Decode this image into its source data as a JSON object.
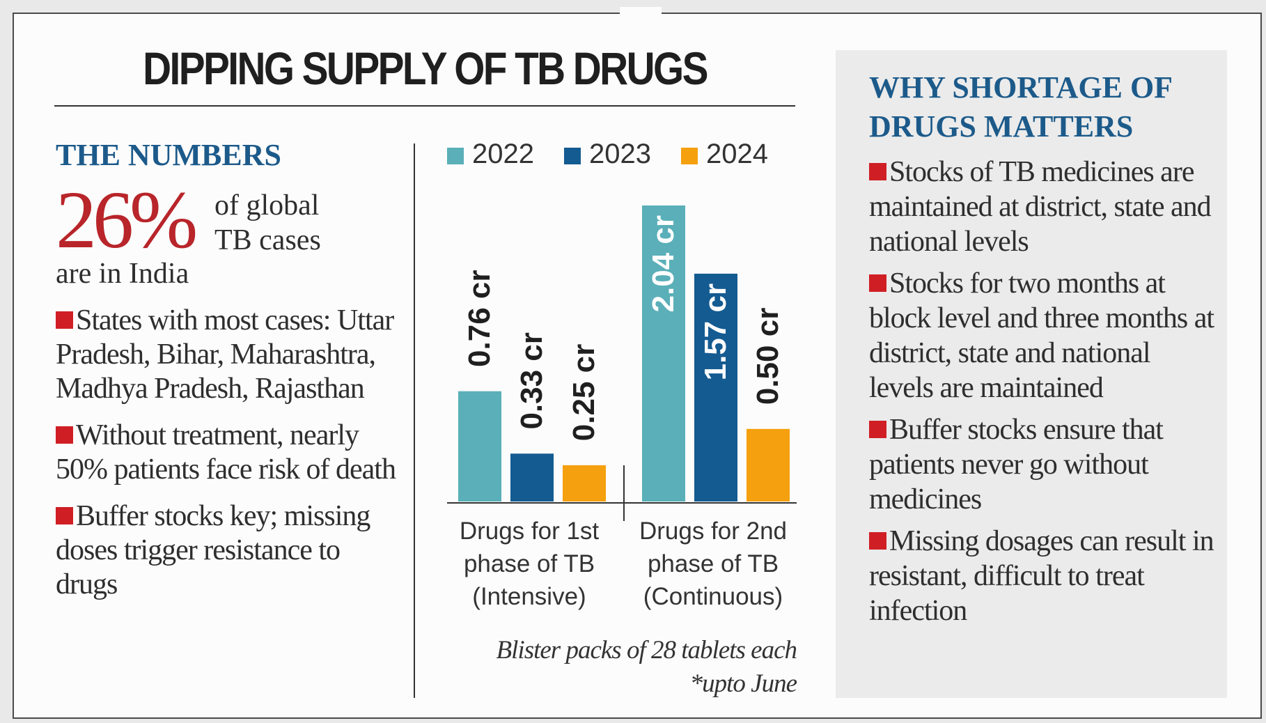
{
  "title": "DIPPING SUPPLY OF TB DRUGS",
  "numbers": {
    "heading": "THE NUMBERS",
    "big_stat": "26%",
    "big_stat_text_line1": "of global",
    "big_stat_text_line2": "TB cases",
    "big_stat_tail": "are in India",
    "bullets": [
      "States with most cases: Uttar Pradesh, Bihar, Maharashtra, Madhya Pradesh, Rajasthan",
      "Without treatment, nearly 50% patients face risk of death",
      "Buffer stocks key; missing doses trigger resistance to drugs"
    ]
  },
  "why": {
    "heading": "WHY SHORTAGE OF DRUGS MATTERS",
    "bullets": [
      "Stocks of TB medicines are maintained at district, state and national levels",
      "Stocks for two months at block level and three months at district, state and national levels are maintained",
      "Buffer stocks ensure that patients never go without medicines",
      "Missing dosages can result in resistant, difficult to treat infection"
    ]
  },
  "chart_data": {
    "type": "bar",
    "categories": [
      [
        "Drugs for 1st",
        "phase of TB",
        "(Intensive)"
      ],
      [
        "Drugs for 2nd",
        "phase of TB",
        "(Continuous)"
      ]
    ],
    "series": [
      {
        "name": "2022",
        "color": "#5aafb8",
        "values": [
          0.76,
          2.04
        ],
        "labels": [
          "0.76 cr",
          "2.04 cr"
        ]
      },
      {
        "name": "2023",
        "color": "#145b91",
        "values": [
          0.33,
          1.57
        ],
        "labels": [
          "0.33 cr",
          "1.57 cr"
        ]
      },
      {
        "name": "2024",
        "color": "#f5a00e",
        "values": [
          0.25,
          0.5
        ],
        "labels": [
          "0.25 cr",
          "0.50 cr"
        ]
      }
    ],
    "unit": "cr",
    "legend_position": "top",
    "caption": "Blister packs of 28 tablets each *upto June"
  }
}
